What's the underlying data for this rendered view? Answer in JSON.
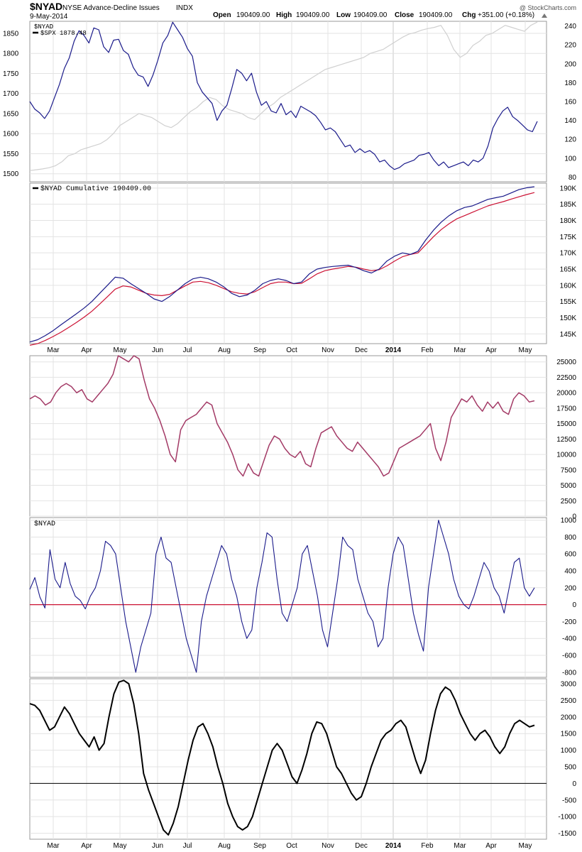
{
  "header": {
    "symbol": "$NYAD",
    "name": "NYSE Advance-Decline Issues",
    "exchange": "INDX",
    "date": "9-May-2014",
    "open_label": "Open",
    "open": "190409.00",
    "high_label": "High",
    "high": "190409.00",
    "low_label": "Low",
    "low": "190409.00",
    "close_label": "Close",
    "close": "190409.00",
    "chg_label": "Chg",
    "chg": "+351.00 (+0.18%)",
    "watermark": "@ StockCharts.com"
  },
  "colors": {
    "navy": "#1a1a8a",
    "crimson": "#cc1133",
    "maroon": "#a33a66",
    "black": "#000000",
    "spx": "#d0d0d0",
    "grid": "#e3e3e3"
  },
  "chart_data": [
    {
      "type": "line",
      "panel": "price",
      "legend": [
        "$NYAD",
        "$SPX 1878.48"
      ],
      "ylabel_left_ticks": [
        1500,
        1550,
        1600,
        1650,
        1700,
        1750,
        1800,
        1850
      ],
      "ylabel_right_ticks": [
        80,
        100,
        120,
        140,
        160,
        180,
        200,
        220,
        240
      ],
      "ylim_left": [
        1480,
        1880
      ],
      "ylim_right": [
        75,
        245
      ],
      "series": [
        {
          "name": "$NYAD",
          "axis": "right",
          "color": "#1a1a8a",
          "values": [
            160,
            152,
            148,
            142,
            150,
            164,
            178,
            195,
            206,
            224,
            235,
            230,
            222,
            238,
            236,
            218,
            212,
            225,
            226,
            214,
            210,
            196,
            188,
            186,
            176,
            188,
            204,
            222,
            230,
            244,
            236,
            228,
            216,
            208,
            180,
            170,
            164,
            158,
            140,
            150,
            156,
            174,
            194,
            190,
            182,
            190,
            170,
            156,
            160,
            150,
            148,
            158,
            146,
            150,
            143,
            155,
            152,
            149,
            145,
            138,
            130,
            132,
            128,
            120,
            112,
            114,
            106,
            110,
            106,
            108,
            104,
            96,
            98,
            92,
            88,
            90,
            94,
            96,
            98,
            103,
            104,
            106,
            98,
            92,
            96,
            90,
            92,
            94,
            96,
            92,
            98,
            96,
            100,
            113,
            132,
            142,
            150,
            154,
            144,
            140,
            135,
            130,
            128,
            139
          ]
        },
        {
          "name": "$SPX",
          "axis": "left",
          "color": "#d0d0d0",
          "values": [
            1508,
            1510,
            1512,
            1515,
            1520,
            1530,
            1545,
            1550,
            1560,
            1565,
            1570,
            1575,
            1585,
            1600,
            1620,
            1630,
            1640,
            1650,
            1645,
            1640,
            1630,
            1620,
            1615,
            1625,
            1640,
            1655,
            1665,
            1680,
            1690,
            1685,
            1670,
            1660,
            1655,
            1650,
            1640,
            1635,
            1650,
            1665,
            1675,
            1690,
            1700,
            1710,
            1720,
            1730,
            1740,
            1750,
            1760,
            1765,
            1770,
            1775,
            1780,
            1785,
            1790,
            1800,
            1805,
            1810,
            1820,
            1830,
            1840,
            1848,
            1852,
            1858,
            1862,
            1865,
            1870,
            1845,
            1810,
            1790,
            1800,
            1820,
            1830,
            1845,
            1850,
            1860,
            1870,
            1865,
            1860,
            1855,
            1870,
            1878
          ]
        }
      ],
      "x_month_labels": [
        "Mar",
        "Apr",
        "May",
        "Jun",
        "Jul",
        "Aug",
        "Sep",
        "Oct",
        "Nov",
        "Dec",
        "2014",
        "Feb",
        "Mar",
        "Apr",
        "May"
      ]
    },
    {
      "type": "line",
      "panel": "cumulative",
      "legend": [
        "$NYAD Cumulative 190409.00"
      ],
      "y_ticks": [
        "145K",
        "150K",
        "155K",
        "160K",
        "165K",
        "170K",
        "175K",
        "180K",
        "185K",
        "190K"
      ],
      "ylim": [
        142000,
        191500
      ],
      "series": [
        {
          "name": "$NYAD Cumulative",
          "color": "#1a1a8a",
          "values": [
            142500,
            143200,
            144500,
            146000,
            147800,
            149500,
            151200,
            153000,
            155000,
            157500,
            160000,
            162500,
            162200,
            160500,
            159000,
            157500,
            155800,
            155000,
            156500,
            158500,
            160500,
            162000,
            162500,
            162000,
            161000,
            159500,
            157500,
            156500,
            157000,
            158500,
            160500,
            161500,
            162000,
            161500,
            160500,
            161000,
            163500,
            165000,
            165500,
            165800,
            166000,
            166200,
            165500,
            164500,
            163800,
            165000,
            167500,
            169000,
            170000,
            169500,
            170500,
            174000,
            177000,
            179500,
            181500,
            183000,
            184000,
            184500,
            185500,
            186500,
            187000,
            187500,
            188500,
            189500,
            190100,
            190409
          ]
        },
        {
          "name": "Moving Average",
          "color": "#cc1133",
          "values": [
            141500,
            142000,
            143000,
            144200,
            145500,
            147000,
            148500,
            150200,
            152000,
            154200,
            156500,
            158800,
            159800,
            159500,
            158500,
            157500,
            157000,
            156800,
            157200,
            158500,
            159800,
            161000,
            161200,
            160800,
            160000,
            159000,
            158000,
            157500,
            157300,
            158000,
            159300,
            160500,
            161000,
            161000,
            160500,
            160600,
            162000,
            163500,
            164500,
            165000,
            165400,
            165800,
            165600,
            165000,
            164500,
            164800,
            166000,
            167500,
            168800,
            169500,
            170000,
            172500,
            175000,
            177200,
            179000,
            180500,
            181500,
            182500,
            183500,
            184500,
            185200,
            185800,
            186600,
            187300,
            188000,
            188600
          ]
        }
      ]
    },
    {
      "type": "line",
      "panel": "oscillator-1",
      "y_ticks": [
        0,
        2500,
        5000,
        7500,
        10000,
        12500,
        15000,
        17500,
        20000,
        22500,
        25000
      ],
      "ylim": [
        0,
        26000
      ],
      "series": [
        {
          "name": "Oscillator 1",
          "color": "#a33a66",
          "values": [
            19000,
            19500,
            19000,
            18000,
            18500,
            20000,
            21000,
            21500,
            21000,
            20000,
            20500,
            19000,
            18500,
            19500,
            20500,
            21500,
            23000,
            26000,
            25500,
            25000,
            26000,
            25500,
            22000,
            19000,
            17500,
            15500,
            13000,
            10000,
            8800,
            14000,
            15500,
            16000,
            16500,
            17500,
            18500,
            18000,
            15000,
            13500,
            12000,
            10000,
            7500,
            6500,
            8500,
            7000,
            6500,
            9000,
            11500,
            13000,
            12500,
            11000,
            10000,
            9500,
            10500,
            8500,
            8000,
            11000,
            13500,
            14000,
            14500,
            13000,
            12000,
            11000,
            10500,
            12000,
            11000,
            10000,
            9000,
            8000,
            6500,
            7000,
            9000,
            11000,
            11500,
            12000,
            12500,
            13000,
            14000,
            15000,
            11000,
            9000,
            12000,
            16000,
            17500,
            19000,
            18500,
            19500,
            18000,
            17000,
            18500,
            17500,
            18500,
            17000,
            16500,
            19000,
            20000,
            19500,
            18500,
            18700
          ]
        }
      ]
    },
    {
      "type": "line",
      "panel": "nyad-daily",
      "legend": [
        "$NYAD"
      ],
      "y_ticks": [
        -800,
        -600,
        -400,
        -200,
        0,
        200,
        400,
        600,
        800,
        1000
      ],
      "ylim": [
        -860,
        1030
      ],
      "series": [
        {
          "name": "$NYAD",
          "color": "#1a1a8a",
          "values": [
            180,
            320,
            90,
            -40,
            650,
            300,
            200,
            500,
            250,
            100,
            50,
            -50,
            100,
            200,
            400,
            750,
            700,
            600,
            200,
            -200,
            -500,
            -800,
            -500,
            -300,
            -100,
            600,
            800,
            550,
            500,
            200,
            -100,
            -400,
            -600,
            -800,
            -200,
            100,
            300,
            500,
            700,
            600,
            300,
            100,
            -200,
            -400,
            -300,
            200,
            500,
            850,
            800,
            300,
            -100,
            -200,
            0,
            200,
            600,
            700,
            400,
            100,
            -300,
            -500,
            -100,
            300,
            800,
            700,
            650,
            300,
            100,
            -100,
            -200,
            -500,
            -400,
            200,
            600,
            800,
            700,
            300,
            -100,
            -350,
            -550,
            200,
            600,
            1000,
            800,
            600,
            300,
            100,
            0,
            -50,
            100,
            300,
            500,
            400,
            200,
            100,
            -100,
            200,
            500,
            550,
            200,
            100,
            200
          ]
        },
        {
          "name": "Zero Line",
          "color": "#cc1133",
          "values": [
            0
          ]
        }
      ]
    },
    {
      "type": "line",
      "panel": "oscillator-2",
      "y_ticks": [
        -1500,
        -1000,
        -500,
        0,
        500,
        1000,
        1500,
        2000,
        2500,
        3000
      ],
      "ylim": [
        -1680,
        3150
      ],
      "series": [
        {
          "name": "Oscillator 2",
          "color": "#000000",
          "values": [
            2400,
            2350,
            2200,
            1900,
            1600,
            1700,
            2000,
            2300,
            2100,
            1800,
            1500,
            1300,
            1100,
            1400,
            1000,
            1200,
            2000,
            2700,
            3050,
            3100,
            3000,
            2400,
            1500,
            300,
            -200,
            -600,
            -1000,
            -1400,
            -1550,
            -1200,
            -700,
            0,
            700,
            1300,
            1700,
            1800,
            1500,
            1100,
            500,
            0,
            -600,
            -1000,
            -1300,
            -1400,
            -1300,
            -1000,
            -500,
            0,
            500,
            1000,
            1200,
            1000,
            600,
            200,
            0,
            400,
            900,
            1500,
            1850,
            1800,
            1500,
            1000,
            500,
            300,
            0,
            -300,
            -500,
            -400,
            0,
            500,
            900,
            1300,
            1500,
            1600,
            1800,
            1900,
            1700,
            1200,
            700,
            300,
            700,
            1500,
            2200,
            2700,
            2900,
            2800,
            2500,
            2100,
            1800,
            1500,
            1300,
            1500,
            1600,
            1400,
            1100,
            900,
            1100,
            1500,
            1800,
            1900,
            1800,
            1700,
            1750
          ]
        },
        {
          "name": "Zero Line",
          "color": "#000000",
          "values": [
            0
          ]
        }
      ],
      "x_month_labels": [
        "Mar",
        "Apr",
        "May",
        "Jun",
        "Jul",
        "Aug",
        "Sep",
        "Oct",
        "Nov",
        "Dec",
        "2014",
        "Feb",
        "Mar",
        "Apr",
        "May"
      ]
    }
  ]
}
